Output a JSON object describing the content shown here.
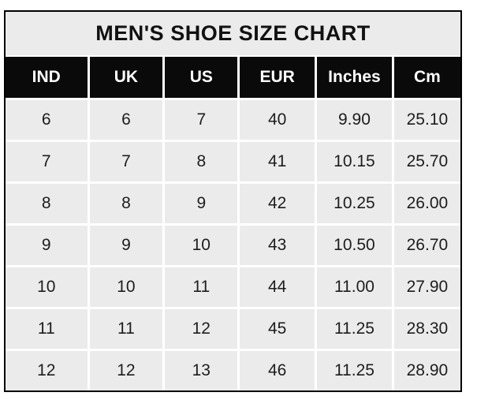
{
  "chart_data": {
    "type": "table",
    "title": "MEN'S SHOE SIZE CHART",
    "columns": [
      "IND",
      "UK",
      "US",
      "EUR",
      "Inches",
      "Cm"
    ],
    "rows": [
      [
        "6",
        "6",
        "7",
        "40",
        "9.90",
        "25.10"
      ],
      [
        "7",
        "7",
        "8",
        "41",
        "10.15",
        "25.70"
      ],
      [
        "8",
        "8",
        "9",
        "42",
        "10.25",
        "26.00"
      ],
      [
        "9",
        "9",
        "10",
        "43",
        "10.50",
        "26.70"
      ],
      [
        "10",
        "10",
        "11",
        "44",
        "11.00",
        "27.90"
      ],
      [
        "11",
        "11",
        "12",
        "45",
        "11.25",
        "28.30"
      ],
      [
        "12",
        "12",
        "13",
        "46",
        "11.25",
        "28.90"
      ]
    ],
    "legend": "none",
    "grid": "white gridlines between gray cells"
  },
  "colors": {
    "page_bg": "#ffffff",
    "border": "#000000",
    "title_bg": "#ebebeb",
    "cell_bg": "#ebebeb",
    "header_bg": "#0a0a0a",
    "header_text": "#ffffff",
    "grid_line": "#ffffff",
    "text": "#1d1d1d"
  }
}
